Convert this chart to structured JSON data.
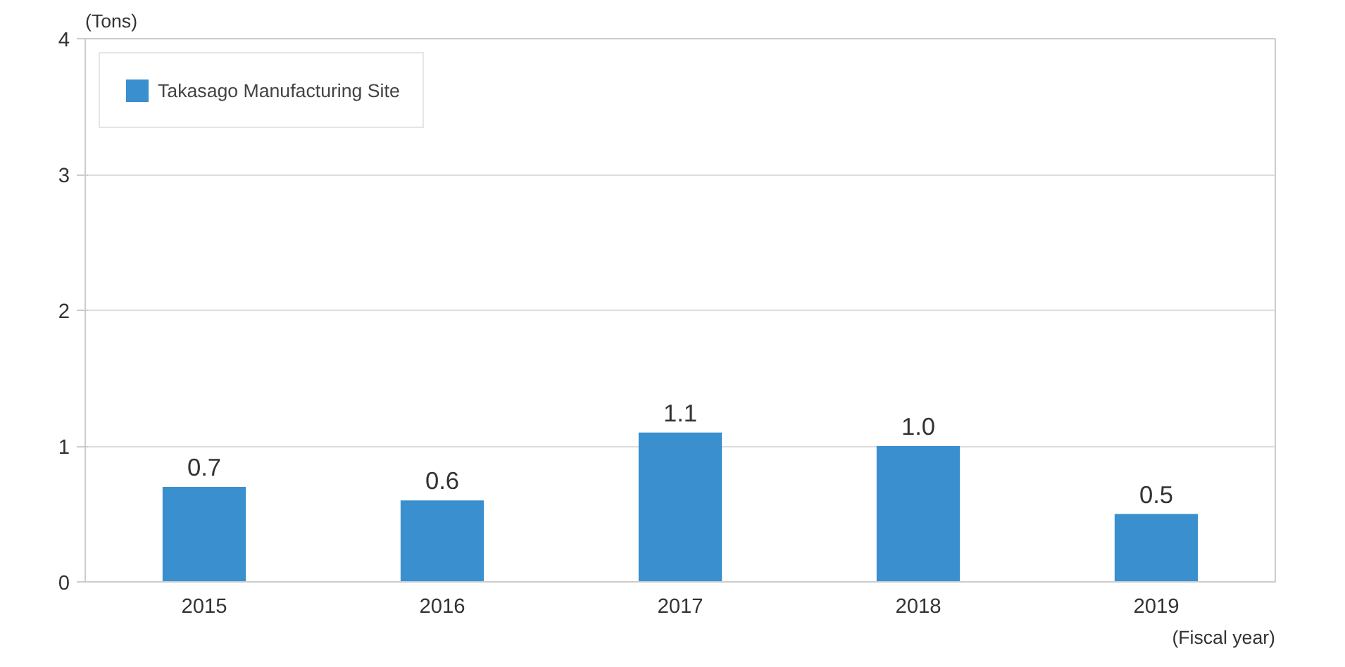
{
  "chart_data": {
    "type": "bar",
    "categories": [
      "2015",
      "2016",
      "2017",
      "2018",
      "2019"
    ],
    "series": [
      {
        "name": "Takasago Manufacturing Site",
        "color": "#3a8fcf",
        "values": [
          0.7,
          0.6,
          1.1,
          1.0,
          0.5
        ],
        "value_labels": [
          "0.7",
          "0.6",
          "1.1",
          "1.0",
          "0.5"
        ]
      }
    ],
    "ylabel": "(Tons)",
    "xlabel": "(Fiscal year)",
    "ylim": [
      0,
      4
    ],
    "yticks": [
      0,
      1,
      2,
      3,
      4
    ],
    "grid": "y",
    "legend": "top left"
  }
}
